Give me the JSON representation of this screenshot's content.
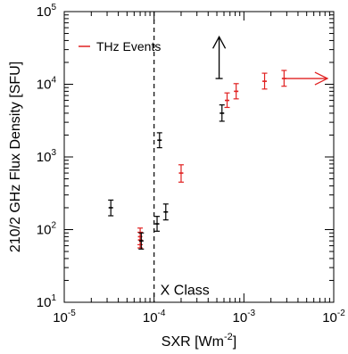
{
  "chart_data": {
    "type": "scatter",
    "title": "",
    "xlabel": "SXR [Wm⁻²]",
    "ylabel": "210/2 GHz Flux Density [SFU]",
    "xscale": "log",
    "yscale": "log",
    "xlim": [
      1e-05,
      0.01
    ],
    "ylim": [
      10,
      100000
    ],
    "x_ticks": [
      {
        "value": 1e-05,
        "base": "10",
        "exp": "-5"
      },
      {
        "value": 0.0001,
        "base": "10",
        "exp": "-4"
      },
      {
        "value": 0.001,
        "base": "10",
        "exp": "-3"
      },
      {
        "value": 0.01,
        "base": "10",
        "exp": "-2"
      }
    ],
    "y_ticks": [
      {
        "value": 10,
        "base": "10",
        "exp": "1"
      },
      {
        "value": 100,
        "base": "10",
        "exp": "2"
      },
      {
        "value": 1000,
        "base": "10",
        "exp": "3"
      },
      {
        "value": 10000,
        "base": "10",
        "exp": "4"
      },
      {
        "value": 100000,
        "base": "10",
        "exp": "5"
      }
    ],
    "grid": false,
    "legend": {
      "placement": "top-left",
      "entries": [
        {
          "label": "THz Events",
          "color": "#e02020"
        }
      ]
    },
    "colors": {
      "thz": "#e02020",
      "other": "#000000"
    },
    "series": [
      {
        "name": "THz Events",
        "color": "#e02020",
        "points": [
          {
            "x": 7e-05,
            "y": 80,
            "ylo": 62,
            "yhi": 105
          },
          {
            "x": 7e-05,
            "y": 72,
            "ylo": 56,
            "yhi": 92
          },
          {
            "x": 0.0002,
            "y": 600,
            "ylo": 450,
            "yhi": 780
          },
          {
            "x": 0.00065,
            "y": 6000,
            "ylo": 4800,
            "yhi": 7600
          },
          {
            "x": 0.00082,
            "y": 8000,
            "ylo": 6300,
            "yhi": 10200
          },
          {
            "x": 0.0017,
            "y": 11000,
            "ylo": 8600,
            "yhi": 14200
          },
          {
            "x": 0.0028,
            "y": 12000,
            "ylo": 9400,
            "yhi": 15500
          }
        ]
      },
      {
        "color": "#000000",
        "points": [
          {
            "x": 3.3e-05,
            "y": 200,
            "ylo": 155,
            "yhi": 255
          },
          {
            "x": 7.2e-05,
            "y": 70,
            "ylo": 54,
            "yhi": 90
          },
          {
            "x": 0.000108,
            "y": 120,
            "ylo": 95,
            "yhi": 152
          },
          {
            "x": 0.000115,
            "y": 1700,
            "ylo": 1340,
            "yhi": 2150
          },
          {
            "x": 0.000135,
            "y": 175,
            "ylo": 136,
            "yhi": 225
          },
          {
            "x": 0.00057,
            "y": 4000,
            "ylo": 3100,
            "yhi": 5200
          }
        ]
      }
    ],
    "limit_arrows": [
      {
        "direction": "up",
        "x": 0.00053,
        "y_from": 12000,
        "y_to": 45000,
        "color": "#000000"
      },
      {
        "direction": "right",
        "y": 12000,
        "x_from": 0.0028,
        "x_to": 0.0085,
        "color": "#e02020"
      }
    ],
    "reference_lines": [
      {
        "orientation": "vertical",
        "x": 0.0001,
        "style": "dashed",
        "label": "X Class",
        "label_y": 15
      }
    ]
  }
}
